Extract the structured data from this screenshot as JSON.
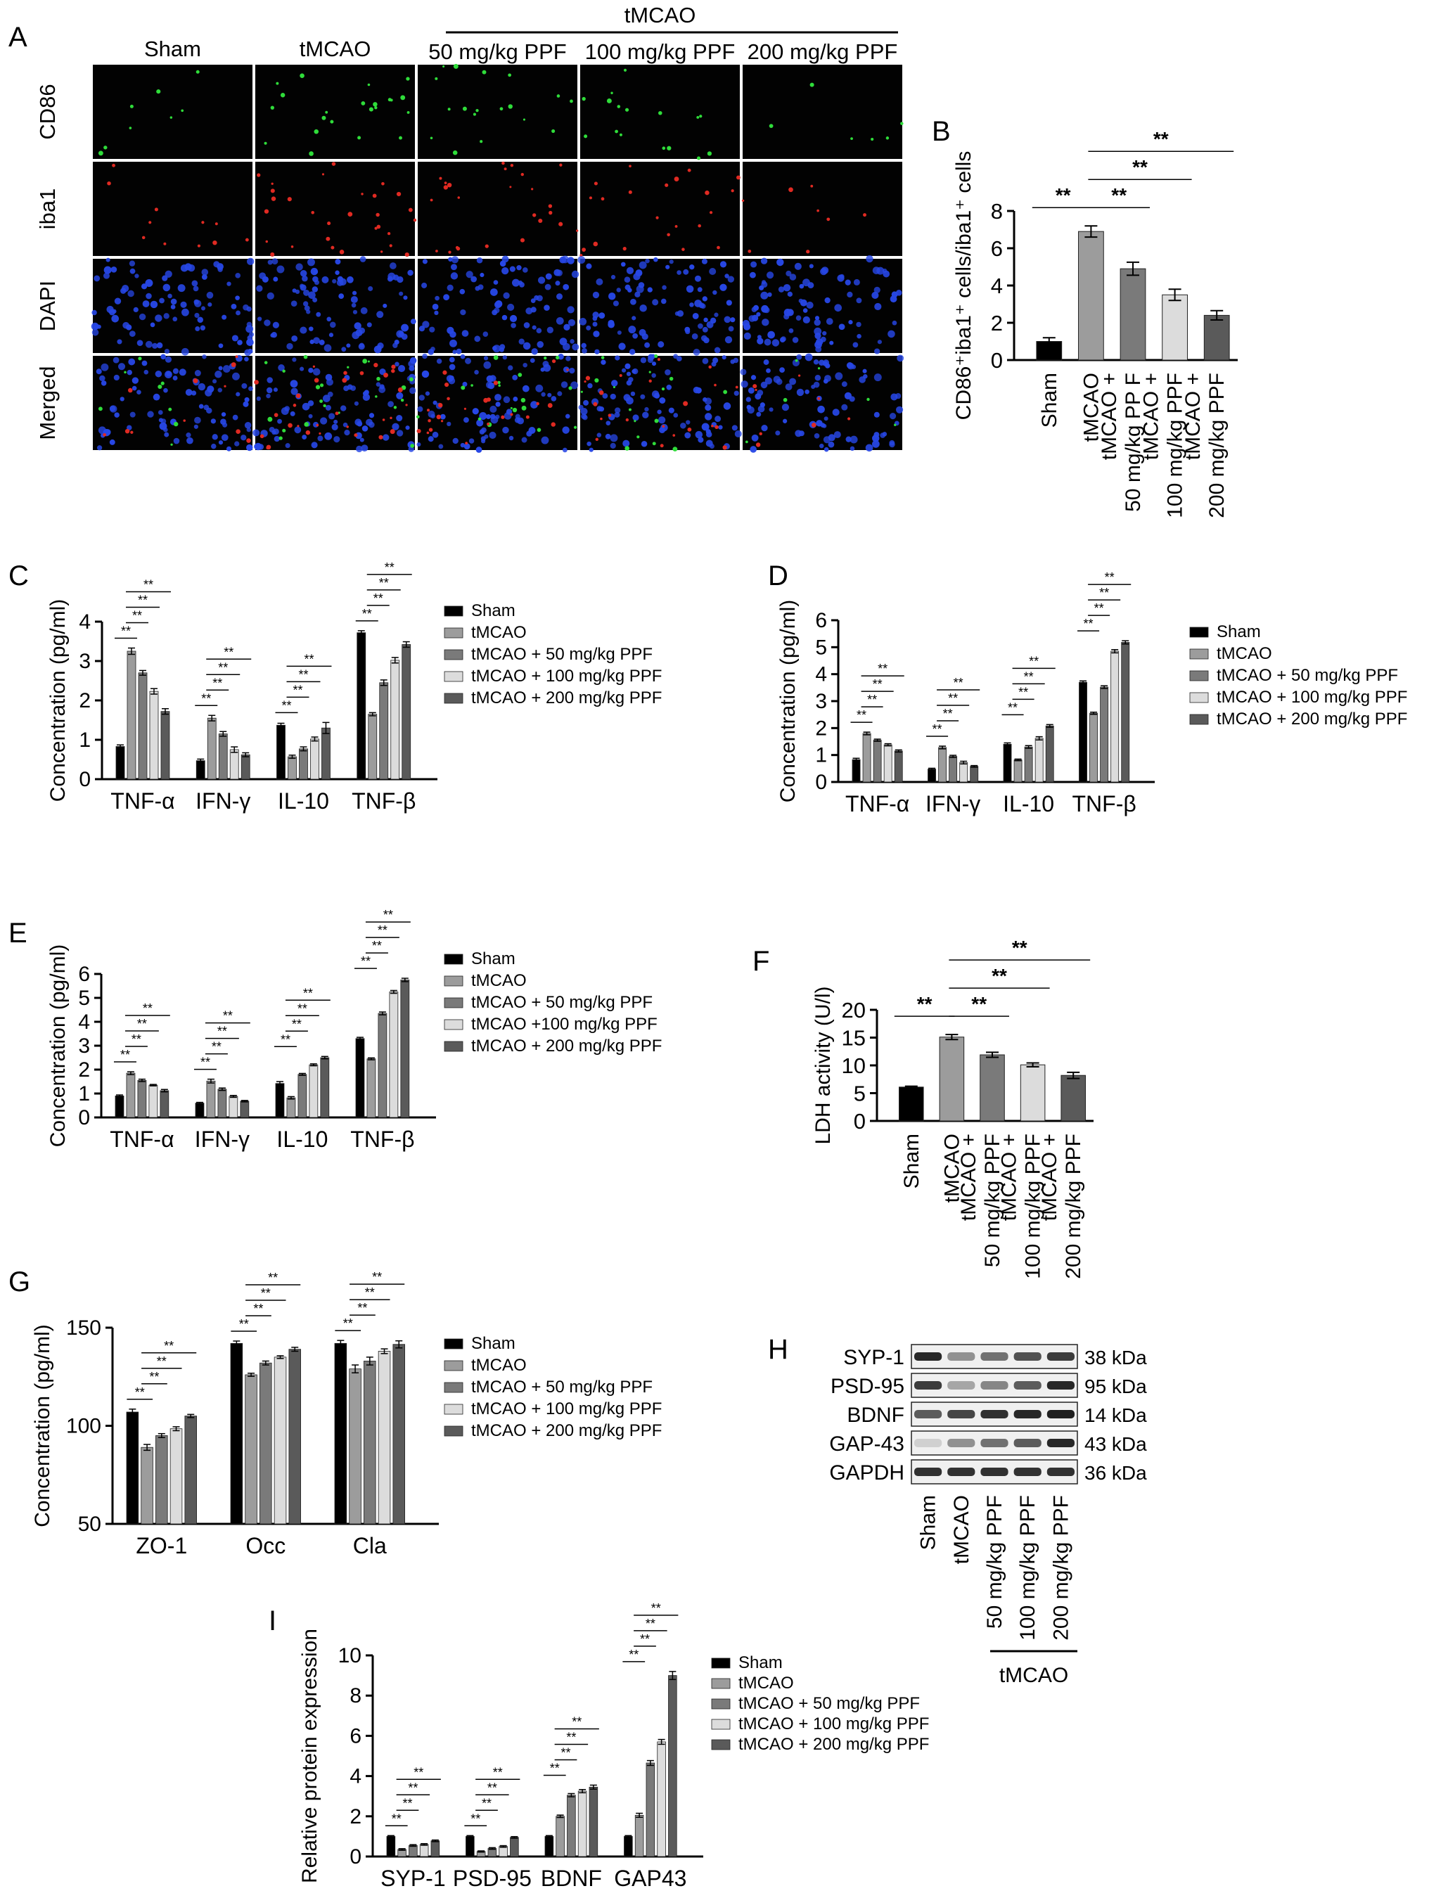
{
  "colors": {
    "sham": "#000000",
    "tmcao": "#9c9c9c",
    "ppf50": "#7a7a7a",
    "ppf100": "#dcdcdc",
    "ppf200": "#5a5a5a",
    "micro_bg": "#020202",
    "cd86": "#2fdc3a",
    "iba1": "#e02a22",
    "dapi": "#2747e6",
    "blot_band": "#1c1c1c"
  },
  "legend_default": [
    "Sham",
    "tMCAO",
    "tMCAO + 50 mg/kg PPF",
    "tMCAO + 100 mg/kg PPF",
    "tMCAO + 200 mg/kg PPF"
  ],
  "legend_e": [
    "Sham",
    "tMCAO",
    "tMCAO + 50 mg/kg PPF",
    "tMCAO +100 mg/kg PPF",
    "tMCAO + 200 mg/kg PPF"
  ],
  "bar_labels_default": [
    "Sham",
    "tMCAO",
    "tMCAO +\n50 mg/kg PPF",
    "tMCAO +\n100 mg/kg PPF",
    "tMCAO +\n200 mg/kg PPF"
  ],
  "bar_labels_b": [
    "Sham",
    "tMCAO",
    "tMCAO +\n50 mg/kg PP F",
    "tMCAO +\n100 mg/kg PPF",
    "tMCAO +\n200 mg/kg PPF"
  ],
  "panelA": {
    "letter": "A",
    "col_labels": [
      "Sham",
      "tMCAO",
      "50 mg/kg PPF",
      "100 mg/kg PPF",
      "200 mg/kg PPF"
    ],
    "group_label": "tMCAO",
    "row_labels": [
      "CD86",
      "iba1",
      "DAPI",
      "Merged"
    ]
  },
  "panelH": {
    "letter": "H",
    "proteins": [
      "SYP-1",
      "PSD-95",
      "BDNF",
      "GAP-43",
      "GAPDH"
    ],
    "kda": [
      "38 kDa",
      "95 kDa",
      "14 kDa",
      "43 kDa",
      "36 kDa"
    ],
    "lanes": [
      "Sham",
      "tMCAO",
      "50 mg/kg PPF",
      "100 mg/kg PPF",
      "200 mg/kg PPF"
    ],
    "group_label": "tMCAO",
    "intensity": [
      [
        0.95,
        0.45,
        0.6,
        0.75,
        0.85
      ],
      [
        0.85,
        0.35,
        0.5,
        0.7,
        0.95
      ],
      [
        0.7,
        0.8,
        0.9,
        0.95,
        0.98
      ],
      [
        0.15,
        0.45,
        0.6,
        0.7,
        0.95
      ],
      [
        0.9,
        0.9,
        0.9,
        0.9,
        0.9
      ]
    ]
  },
  "chart_data": [
    {
      "id": "B",
      "letter": "B",
      "type": "bar",
      "ylabel": "CD86⁺iba1⁺ cells/iba1⁺ cells",
      "ylim": [
        0,
        8
      ],
      "yticks": [
        0,
        2,
        4,
        6,
        8
      ],
      "categories": [
        "Sham",
        "tMCAO",
        "tMCAO + 50 mg/kg PP F",
        "tMCAO + 100 mg/kg PPF",
        "tMCAO + 200 mg/kg PPF"
      ],
      "values": [
        1.0,
        6.9,
        4.9,
        3.5,
        2.4
      ],
      "errors": [
        0.2,
        0.3,
        0.35,
        0.3,
        0.25
      ],
      "significance": [
        {
          "from": 0,
          "to": 1,
          "label": "**"
        },
        {
          "from": 1,
          "to": 2,
          "label": "**"
        },
        {
          "from": 1,
          "to": 3,
          "label": "**"
        },
        {
          "from": 1,
          "to": 4,
          "label": "**"
        }
      ]
    },
    {
      "id": "C",
      "letter": "C",
      "type": "bar",
      "ylabel": "Concentration (pg/ml)",
      "ylim": [
        0,
        4
      ],
      "yticks": [
        0,
        1,
        2,
        3,
        4
      ],
      "categories": [
        "TNF-α",
        "IFN-γ",
        "IL-10",
        "TNF-β"
      ],
      "series": [
        {
          "name": "Sham",
          "values": [
            0.83,
            0.47,
            1.37,
            3.72
          ],
          "errors": [
            0.04,
            0.04,
            0.05,
            0.05
          ]
        },
        {
          "name": "tMCAO",
          "values": [
            3.25,
            1.55,
            0.57,
            1.65
          ],
          "errors": [
            0.08,
            0.07,
            0.04,
            0.04
          ]
        },
        {
          "name": "tMCAO + 50 mg/kg PPF",
          "values": [
            2.7,
            1.15,
            0.77,
            2.45
          ],
          "errors": [
            0.06,
            0.06,
            0.05,
            0.07
          ]
        },
        {
          "name": "tMCAO + 100 mg/kg PPF",
          "values": [
            2.23,
            0.75,
            1.02,
            3.02
          ],
          "errors": [
            0.07,
            0.07,
            0.05,
            0.07
          ]
        },
        {
          "name": "tMCAO + 200 mg/kg PPF",
          "values": [
            1.72,
            0.62,
            1.3,
            3.42
          ],
          "errors": [
            0.07,
            0.05,
            0.14,
            0.07
          ]
        }
      ]
    },
    {
      "id": "D",
      "letter": "D",
      "type": "bar",
      "ylabel": "Concentration (pg/ml)",
      "ylim": [
        0,
        6
      ],
      "yticks": [
        0,
        1,
        2,
        3,
        4,
        5,
        6
      ],
      "categories": [
        "TNF-α",
        "IFN-γ",
        "IL-10",
        "TNF-β"
      ],
      "series": [
        {
          "name": "Sham",
          "values": [
            0.83,
            0.48,
            1.4,
            3.7
          ],
          "errors": [
            0.05,
            0.03,
            0.05,
            0.05
          ]
        },
        {
          "name": "tMCAO",
          "values": [
            1.8,
            1.28,
            0.82,
            2.55
          ],
          "errors": [
            0.05,
            0.05,
            0.03,
            0.04
          ]
        },
        {
          "name": "tMCAO + 50 mg/kg PPF",
          "values": [
            1.55,
            0.95,
            1.3,
            3.52
          ],
          "errors": [
            0.04,
            0.04,
            0.05,
            0.05
          ]
        },
        {
          "name": "tMCAO + 100 mg/kg PPF",
          "values": [
            1.38,
            0.72,
            1.62,
            4.85
          ],
          "errors": [
            0.04,
            0.05,
            0.06,
            0.06
          ]
        },
        {
          "name": "tMCAO + 200 mg/kg PPF",
          "values": [
            1.15,
            0.58,
            2.08,
            5.18
          ],
          "errors": [
            0.04,
            0.03,
            0.05,
            0.06
          ]
        }
      ]
    },
    {
      "id": "E",
      "letter": "E",
      "type": "bar",
      "ylabel": "Concentration (pg/ml)",
      "ylim": [
        0,
        6
      ],
      "yticks": [
        0,
        1,
        2,
        3,
        4,
        5,
        6
      ],
      "categories": [
        "TNF-α",
        "IFN-γ",
        "IL-10",
        "TNF-β"
      ],
      "series": [
        {
          "name": "Sham",
          "values": [
            0.9,
            0.6,
            1.42,
            3.3
          ],
          "errors": [
            0.04,
            0.03,
            0.08,
            0.05
          ]
        },
        {
          "name": "tMCAO",
          "values": [
            1.85,
            1.52,
            0.82,
            2.45
          ],
          "errors": [
            0.06,
            0.08,
            0.05,
            0.04
          ]
        },
        {
          "name": "tMCAO + 50 mg/kg PPF",
          "values": [
            1.55,
            1.18,
            1.8,
            4.35
          ],
          "errors": [
            0.05,
            0.05,
            0.04,
            0.06
          ]
        },
        {
          "name": "tMCAO +100 mg/kg PPF",
          "values": [
            1.35,
            0.88,
            2.2,
            5.25
          ],
          "errors": [
            0.03,
            0.04,
            0.04,
            0.06
          ]
        },
        {
          "name": "tMCAO + 200 mg/kg PPF",
          "values": [
            1.12,
            0.68,
            2.5,
            5.75
          ],
          "errors": [
            0.05,
            0.03,
            0.05,
            0.07
          ]
        }
      ]
    },
    {
      "id": "F",
      "letter": "F",
      "type": "bar",
      "ylabel": "LDH activity (U/l)",
      "ylim": [
        0,
        20
      ],
      "yticks": [
        0,
        5,
        10,
        15,
        20
      ],
      "categories": [
        "Sham",
        "tMCAO",
        "tMCAO + 50 mg/kg PPF",
        "tMCAO + 100 mg/kg PPF",
        "tMCAO + 200 mg/kg PPF"
      ],
      "values": [
        6.1,
        15.1,
        11.9,
        10.1,
        8.2
      ],
      "errors": [
        0.15,
        0.45,
        0.45,
        0.35,
        0.55
      ],
      "significance": [
        {
          "from": 0,
          "to": 1,
          "label": "**"
        },
        {
          "from": 1,
          "to": 2,
          "label": "**"
        },
        {
          "from": 1,
          "to": 3,
          "label": "**"
        },
        {
          "from": 1,
          "to": 4,
          "label": "**"
        }
      ]
    },
    {
      "id": "G",
      "letter": "G",
      "type": "bar",
      "ylabel": "Concentration (pg/ml)",
      "ylim": [
        50,
        150
      ],
      "yticks": [
        50,
        100,
        150
      ],
      "categories": [
        "ZO-1",
        "Occ",
        "Cla"
      ],
      "series": [
        {
          "name": "Sham",
          "values": [
            107,
            142,
            142
          ],
          "errors": [
            1.5,
            1.2,
            1.5
          ]
        },
        {
          "name": "tMCAO",
          "values": [
            89,
            126,
            129
          ],
          "errors": [
            1.5,
            0.8,
            2.0
          ]
        },
        {
          "name": "tMCAO + 50 mg/kg PPF",
          "values": [
            95,
            132,
            133
          ],
          "errors": [
            1.0,
            1.0,
            2.0
          ]
        },
        {
          "name": "tMCAO + 100 mg/kg PPF",
          "values": [
            98.5,
            135,
            138
          ],
          "errors": [
            1.0,
            0.7,
            1.2
          ]
        },
        {
          "name": "tMCAO + 200 mg/kg PPF",
          "values": [
            105,
            139,
            141.5
          ],
          "errors": [
            0.8,
            1.0,
            1.8
          ]
        }
      ]
    },
    {
      "id": "I",
      "letter": "I",
      "type": "bar",
      "ylabel": "Relative protein expression",
      "ylim": [
        0,
        10
      ],
      "yticks": [
        0,
        2,
        4,
        6,
        8,
        10
      ],
      "categories": [
        "SYP-1",
        "PSD-95",
        "BDNF",
        "GAP43"
      ],
      "series": [
        {
          "name": "Sham",
          "values": [
            1.0,
            1.0,
            1.0,
            1.0
          ],
          "errors": [
            0.04,
            0.04,
            0.04,
            0.04
          ]
        },
        {
          "name": "tMCAO",
          "values": [
            0.35,
            0.25,
            2.0,
            2.05
          ],
          "errors": [
            0.04,
            0.03,
            0.06,
            0.1
          ]
        },
        {
          "name": "tMCAO + 50 mg/kg PPF",
          "values": [
            0.55,
            0.4,
            3.05,
            4.65
          ],
          "errors": [
            0.04,
            0.04,
            0.08,
            0.12
          ]
        },
        {
          "name": "tMCAO + 100 mg/kg PPF",
          "values": [
            0.6,
            0.5,
            3.25,
            5.7
          ],
          "errors": [
            0.04,
            0.04,
            0.08,
            0.12
          ]
        },
        {
          "name": "tMCAO + 200 mg/kg PPF",
          "values": [
            0.78,
            0.95,
            3.45,
            9.0
          ],
          "errors": [
            0.04,
            0.04,
            0.1,
            0.2
          ]
        }
      ]
    }
  ]
}
